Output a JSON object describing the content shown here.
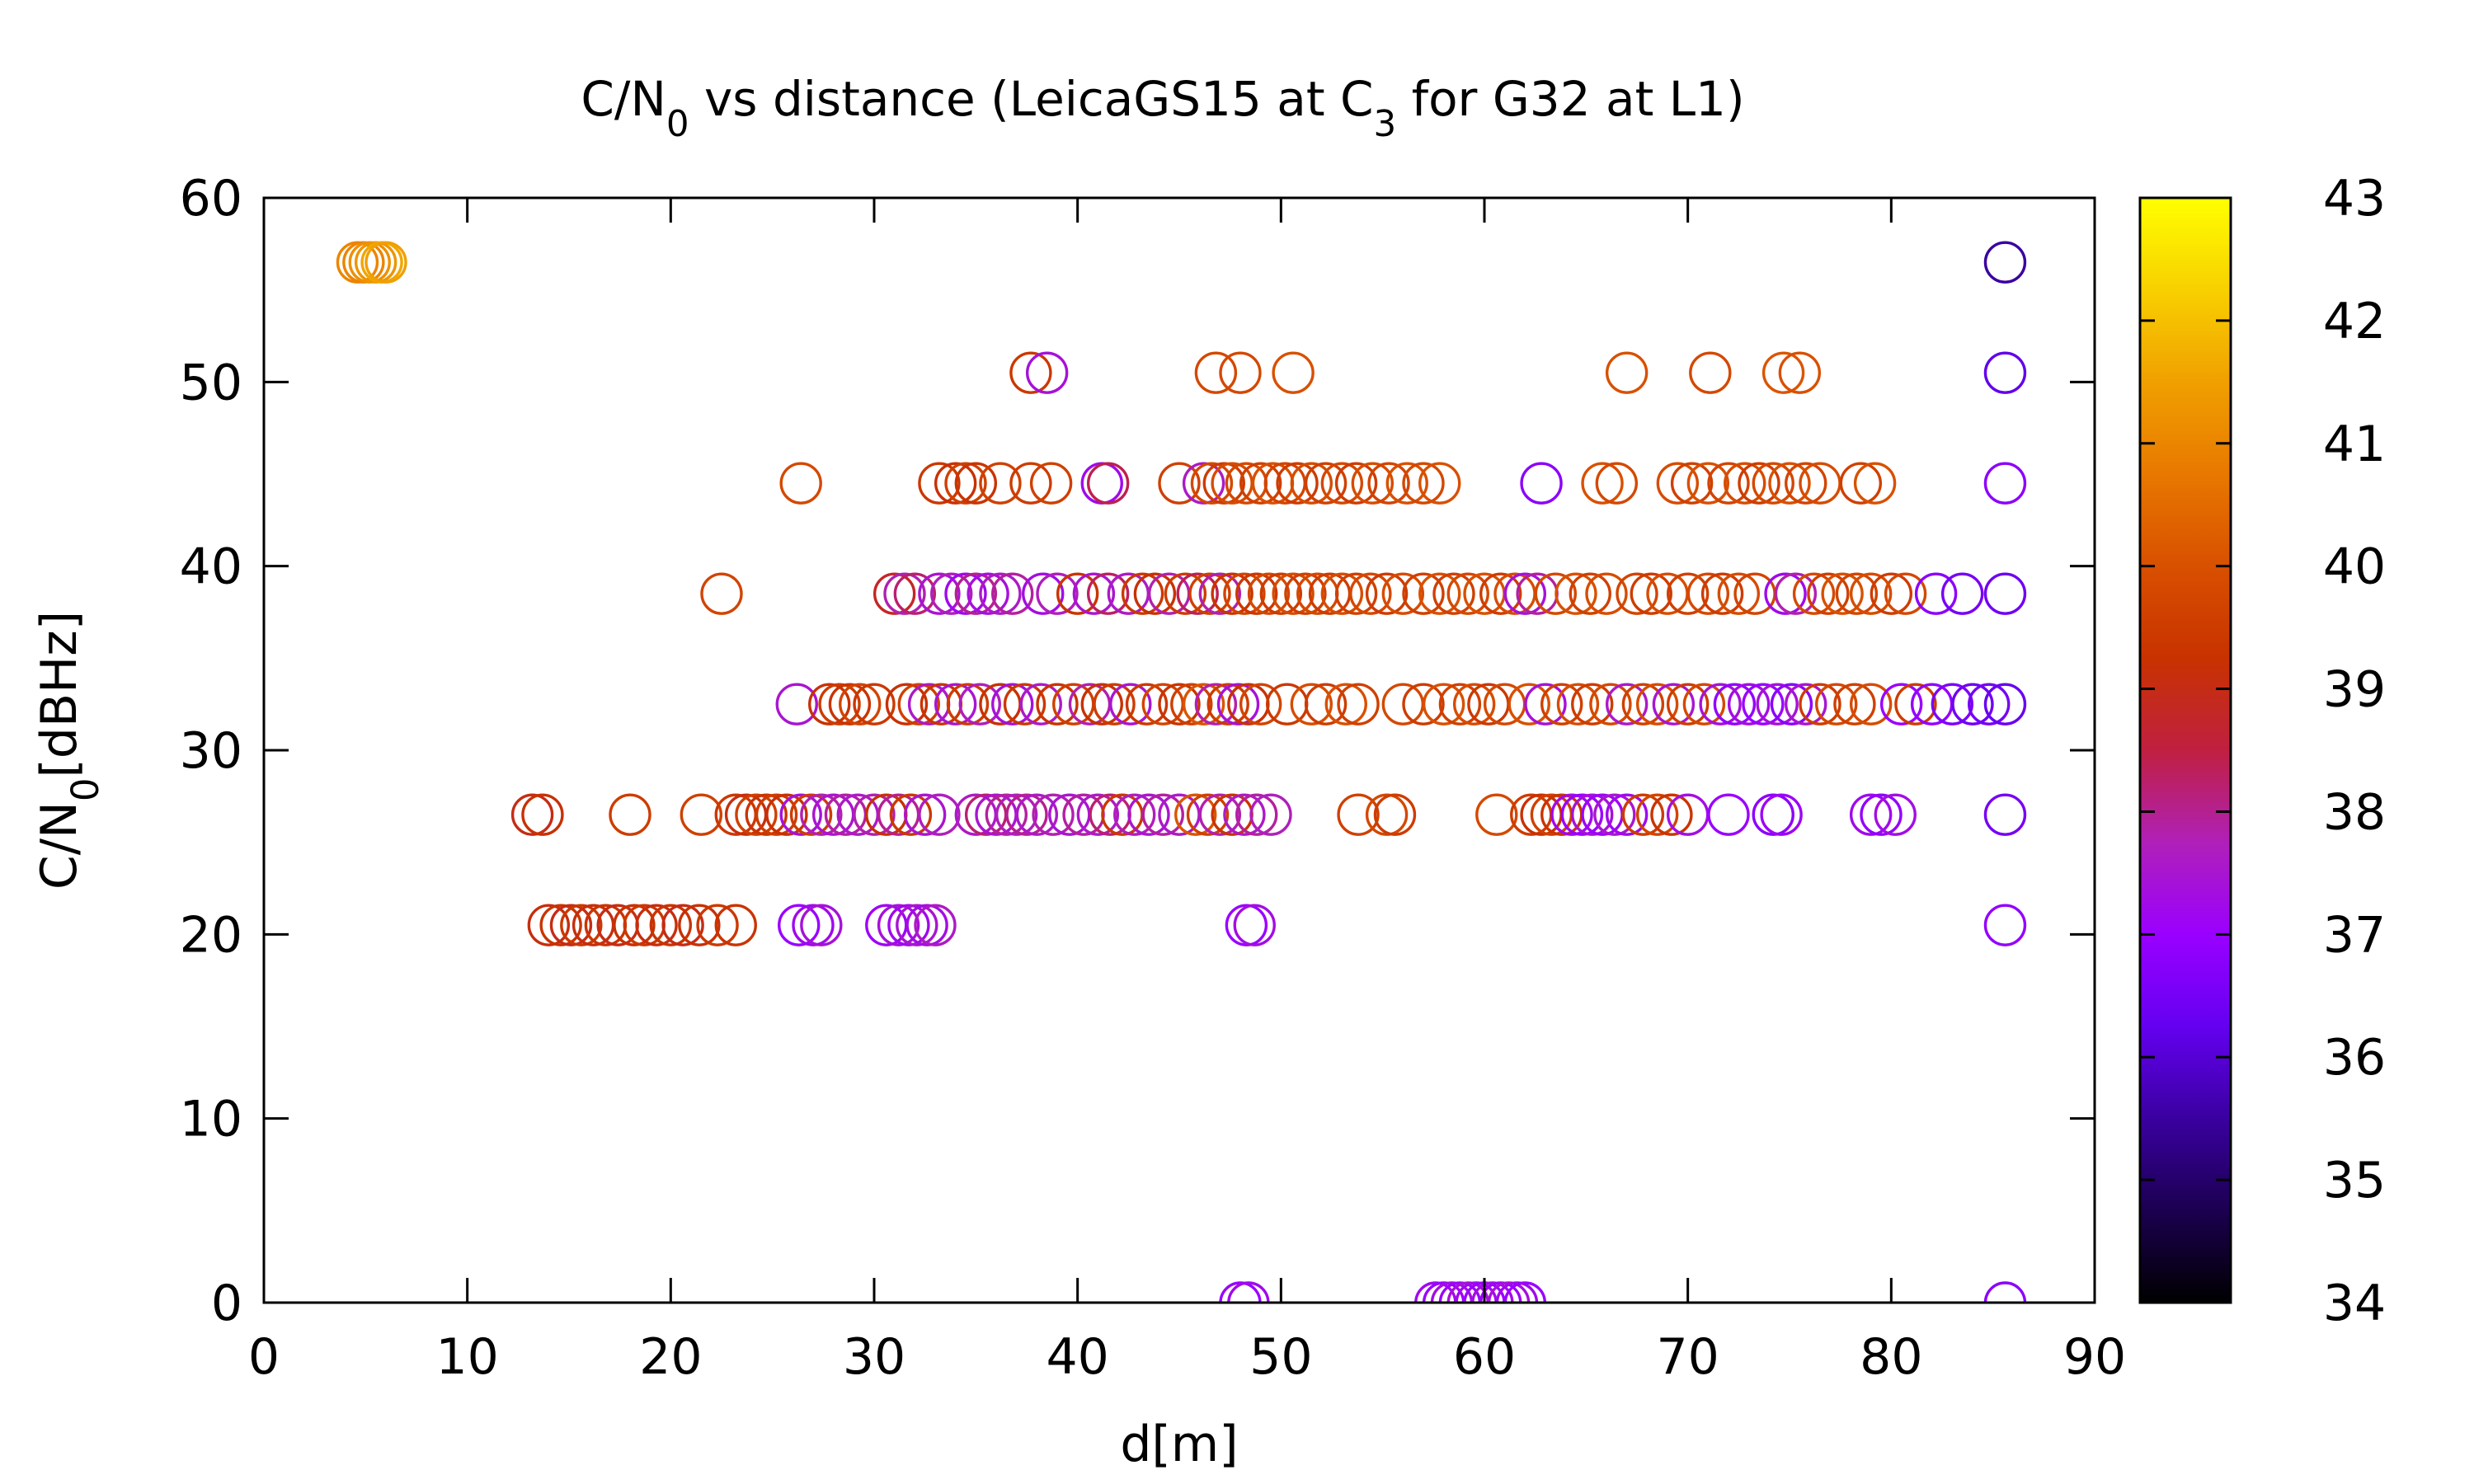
{
  "chart_data": {
    "type": "scatter",
    "marker": "open-circle",
    "title": "C/N0 vs distance (LeicaGS15 at C3 for G32 at L1)",
    "xlabel": "d[m]",
    "ylabel": "C/N0[dBHz]",
    "xlim": [
      0,
      90
    ],
    "ylim": [
      0,
      60
    ],
    "xticks": [
      0,
      10,
      20,
      30,
      40,
      50,
      60,
      70,
      80,
      90
    ],
    "yticks": [
      0,
      10,
      20,
      30,
      40,
      50,
      60
    ],
    "grid": false,
    "legend": "none",
    "colorbar": {
      "range": [
        34,
        43
      ],
      "ticks": [
        34,
        35,
        36,
        37,
        38,
        39,
        40,
        41,
        42,
        43
      ],
      "colormap": "black-purple-red-orange-yellow"
    },
    "colormap_stops": [
      "#000000",
      "#1b0050",
      "#3a00a0",
      "#6400f0",
      "#9a00ff",
      "#b020b8",
      "#c02040",
      "#c83200",
      "#d85000",
      "#e87800",
      "#f0a000",
      "#f8d000",
      "#ffff00"
    ],
    "points": [
      [
        4.6,
        56.5,
        41.0
      ],
      [
        4.9,
        56.5,
        41.0
      ],
      [
        5.2,
        56.5,
        41.2
      ],
      [
        5.5,
        56.5,
        41.3
      ],
      [
        5.8,
        56.5,
        41.6
      ],
      [
        6.0,
        56.5,
        41.5
      ],
      [
        85.6,
        56.5,
        35.5
      ],
      [
        37.7,
        50.5,
        39.4
      ],
      [
        38.5,
        50.5,
        37.4
      ],
      [
        46.8,
        50.5,
        39.8
      ],
      [
        48.0,
        50.5,
        39.8
      ],
      [
        50.6,
        50.5,
        40.0
      ],
      [
        67.0,
        50.5,
        40.0
      ],
      [
        71.1,
        50.5,
        39.8
      ],
      [
        74.7,
        50.5,
        40.1
      ],
      [
        75.5,
        50.5,
        40.0
      ],
      [
        85.6,
        50.5,
        36.2
      ],
      [
        26.4,
        44.5,
        39.8
      ],
      [
        33.2,
        44.5,
        39.4
      ],
      [
        34.0,
        44.5,
        39.2
      ],
      [
        34.5,
        44.5,
        39.6
      ],
      [
        35.0,
        44.5,
        39.3
      ],
      [
        36.2,
        44.5,
        39.6
      ],
      [
        37.7,
        44.5,
        39.5
      ],
      [
        38.7,
        44.5,
        39.6
      ],
      [
        41.2,
        44.5,
        37.2
      ],
      [
        41.5,
        44.5,
        38.4
      ],
      [
        45.0,
        44.5,
        39.6
      ],
      [
        46.2,
        44.5,
        37.6
      ],
      [
        46.6,
        44.5,
        39.8
      ],
      [
        47.2,
        44.5,
        39.5
      ],
      [
        47.6,
        44.5,
        39.9
      ],
      [
        48.3,
        44.5,
        39.8
      ],
      [
        49.0,
        44.5,
        39.6
      ],
      [
        49.6,
        44.5,
        40.0
      ],
      [
        50.2,
        44.5,
        39.7
      ],
      [
        50.8,
        44.5,
        39.5
      ],
      [
        51.5,
        44.5,
        39.9
      ],
      [
        52.2,
        44.5,
        39.6
      ],
      [
        53.0,
        44.5,
        39.8
      ],
      [
        53.7,
        44.5,
        39.5
      ],
      [
        54.5,
        44.5,
        39.9
      ],
      [
        55.3,
        44.5,
        39.7
      ],
      [
        56.2,
        44.5,
        40.0
      ],
      [
        57.0,
        44.5,
        39.8
      ],
      [
        57.8,
        44.5,
        40.0
      ],
      [
        62.8,
        44.5,
        36.8
      ],
      [
        65.8,
        44.5,
        40.0
      ],
      [
        66.5,
        44.5,
        39.8
      ],
      [
        69.5,
        44.5,
        39.9
      ],
      [
        70.2,
        44.5,
        39.6
      ],
      [
        71.0,
        44.5,
        40.0
      ],
      [
        72.0,
        44.5,
        39.7
      ],
      [
        72.8,
        44.5,
        39.9
      ],
      [
        73.5,
        44.5,
        39.5
      ],
      [
        74.2,
        44.5,
        39.8
      ],
      [
        75.0,
        44.5,
        40.0
      ],
      [
        75.8,
        44.5,
        39.7
      ],
      [
        76.5,
        44.5,
        39.9
      ],
      [
        78.5,
        44.5,
        39.6
      ],
      [
        79.2,
        44.5,
        40.0
      ],
      [
        85.6,
        44.5,
        36.8
      ],
      [
        22.5,
        38.5,
        39.7
      ],
      [
        31.0,
        38.5,
        38.8
      ],
      [
        31.5,
        38.5,
        37.8
      ],
      [
        32.0,
        38.5,
        38.2
      ],
      [
        33.2,
        38.5,
        37.5
      ],
      [
        33.8,
        38.5,
        37.7
      ],
      [
        34.5,
        38.5,
        37.2
      ],
      [
        35.0,
        38.5,
        38.0
      ],
      [
        35.6,
        38.5,
        37.4
      ],
      [
        36.2,
        38.5,
        37.6
      ],
      [
        36.8,
        38.5,
        37.9
      ],
      [
        38.3,
        38.5,
        37.3
      ],
      [
        39.0,
        38.5,
        37.7
      ],
      [
        40.0,
        38.5,
        39.3
      ],
      [
        40.8,
        38.5,
        37.5
      ],
      [
        41.5,
        38.5,
        38.3
      ],
      [
        42.5,
        38.5,
        37.6
      ],
      [
        43.2,
        38.5,
        39.4
      ],
      [
        43.8,
        38.5,
        39.2
      ],
      [
        44.5,
        38.5,
        37.8
      ],
      [
        45.3,
        38.5,
        39.5
      ],
      [
        45.9,
        38.5,
        38.4
      ],
      [
        46.5,
        38.5,
        39.6
      ],
      [
        47.0,
        38.5,
        37.8
      ],
      [
        47.6,
        38.5,
        39.3
      ],
      [
        48.2,
        38.5,
        39.7
      ],
      [
        48.8,
        38.5,
        39.4
      ],
      [
        49.4,
        38.5,
        39.8
      ],
      [
        50.0,
        38.5,
        39.5
      ],
      [
        50.6,
        38.5,
        39.9
      ],
      [
        51.2,
        38.5,
        39.6
      ],
      [
        51.8,
        38.5,
        39.8
      ],
      [
        52.4,
        38.5,
        39.5
      ],
      [
        53.0,
        38.5,
        39.9
      ],
      [
        53.7,
        38.5,
        39.6
      ],
      [
        54.4,
        38.5,
        39.8
      ],
      [
        55.2,
        38.5,
        39.5
      ],
      [
        56.0,
        38.5,
        39.9
      ],
      [
        57.0,
        38.5,
        39.6
      ],
      [
        57.8,
        38.5,
        40.0
      ],
      [
        58.5,
        38.5,
        39.6
      ],
      [
        59.2,
        38.5,
        39.8
      ],
      [
        60.0,
        38.5,
        40.0
      ],
      [
        60.8,
        38.5,
        39.5
      ],
      [
        61.5,
        38.5,
        39.9
      ],
      [
        62.0,
        38.5,
        37.4
      ],
      [
        62.6,
        38.5,
        37.9
      ],
      [
        63.5,
        38.5,
        39.8
      ],
      [
        64.5,
        38.5,
        40.0
      ],
      [
        65.2,
        38.5,
        39.6
      ],
      [
        66.0,
        38.5,
        39.9
      ],
      [
        67.5,
        38.5,
        39.7
      ],
      [
        68.2,
        38.5,
        39.5
      ],
      [
        69.0,
        38.5,
        39.9
      ],
      [
        70.0,
        38.5,
        39.6
      ],
      [
        71.0,
        38.5,
        39.8
      ],
      [
        71.7,
        38.5,
        39.5
      ],
      [
        72.5,
        38.5,
        39.9
      ],
      [
        73.3,
        38.5,
        39.7
      ],
      [
        74.8,
        38.5,
        37.2
      ],
      [
        75.3,
        38.5,
        37.8
      ],
      [
        76.2,
        38.5,
        39.8
      ],
      [
        76.9,
        38.5,
        39.6
      ],
      [
        77.6,
        38.5,
        40.0
      ],
      [
        78.3,
        38.5,
        39.7
      ],
      [
        79.0,
        38.5,
        39.9
      ],
      [
        80.0,
        38.5,
        39.5
      ],
      [
        80.7,
        38.5,
        39.8
      ],
      [
        82.2,
        38.5,
        36.8
      ],
      [
        83.5,
        38.5,
        36.5
      ],
      [
        85.6,
        38.5,
        36.4
      ],
      [
        26.2,
        32.5,
        37.5
      ],
      [
        27.8,
        32.5,
        39.2
      ],
      [
        28.3,
        32.5,
        39.5
      ],
      [
        28.8,
        32.5,
        39.3
      ],
      [
        29.3,
        32.5,
        39.7
      ],
      [
        30.0,
        32.5,
        39.4
      ],
      [
        31.6,
        32.5,
        39.2
      ],
      [
        32.2,
        32.5,
        39.6
      ],
      [
        32.7,
        32.5,
        37.6
      ],
      [
        33.3,
        32.5,
        39.3
      ],
      [
        34.0,
        32.5,
        37.5
      ],
      [
        34.6,
        32.5,
        39.5
      ],
      [
        35.2,
        32.5,
        37.7
      ],
      [
        36.2,
        32.5,
        39.2
      ],
      [
        36.8,
        32.5,
        37.4
      ],
      [
        37.4,
        32.5,
        39.4
      ],
      [
        38.2,
        32.5,
        37.6
      ],
      [
        39.0,
        32.5,
        39.3
      ],
      [
        39.8,
        32.5,
        39.6
      ],
      [
        40.6,
        32.5,
        37.8
      ],
      [
        41.2,
        32.5,
        39.2
      ],
      [
        41.8,
        32.5,
        39.5
      ],
      [
        42.6,
        32.5,
        37.5
      ],
      [
        43.4,
        32.5,
        39.4
      ],
      [
        44.2,
        32.5,
        39.7
      ],
      [
        45.0,
        32.5,
        39.3
      ],
      [
        45.6,
        32.5,
        39.6
      ],
      [
        46.2,
        32.5,
        40.1
      ],
      [
        46.8,
        32.5,
        37.8
      ],
      [
        47.4,
        32.5,
        39.5
      ],
      [
        47.9,
        32.5,
        37.4
      ],
      [
        48.4,
        32.5,
        39.2
      ],
      [
        49.0,
        32.5,
        39.7
      ],
      [
        50.3,
        32.5,
        39.4
      ],
      [
        51.5,
        32.5,
        39.9
      ],
      [
        52.2,
        32.5,
        39.5
      ],
      [
        53.2,
        32.5,
        40.0
      ],
      [
        53.8,
        32.5,
        39.6
      ],
      [
        56.0,
        32.5,
        39.8
      ],
      [
        57.0,
        32.5,
        39.5
      ],
      [
        58.0,
        32.5,
        40.0
      ],
      [
        58.8,
        32.5,
        39.6
      ],
      [
        59.5,
        32.5,
        39.9
      ],
      [
        60.2,
        32.5,
        39.4
      ],
      [
        61.0,
        32.5,
        39.8
      ],
      [
        62.2,
        32.5,
        40.0
      ],
      [
        63.0,
        32.5,
        37.4
      ],
      [
        63.8,
        32.5,
        39.6
      ],
      [
        64.6,
        32.5,
        39.9
      ],
      [
        65.3,
        32.5,
        39.5
      ],
      [
        66.2,
        32.5,
        39.8
      ],
      [
        67.0,
        32.5,
        37.6
      ],
      [
        67.8,
        32.5,
        39.6
      ],
      [
        68.5,
        32.5,
        39.9
      ],
      [
        69.3,
        32.5,
        37.5
      ],
      [
        70.0,
        32.5,
        39.5
      ],
      [
        70.8,
        32.5,
        39.8
      ],
      [
        71.6,
        32.5,
        37.4
      ],
      [
        72.3,
        32.5,
        36.9
      ],
      [
        73.0,
        32.5,
        37.3
      ],
      [
        73.7,
        32.5,
        37.0
      ],
      [
        74.4,
        32.5,
        37.4
      ],
      [
        75.1,
        32.5,
        36.8
      ],
      [
        75.8,
        32.5,
        37.5
      ],
      [
        76.5,
        32.5,
        39.5
      ],
      [
        77.3,
        32.5,
        39.8
      ],
      [
        78.2,
        32.5,
        39.6
      ],
      [
        79.0,
        32.5,
        39.9
      ],
      [
        80.5,
        32.5,
        37.0
      ],
      [
        81.2,
        32.5,
        39.5
      ],
      [
        82.0,
        32.5,
        36.9
      ],
      [
        83.0,
        32.5,
        36.6
      ],
      [
        84.0,
        32.5,
        36.4
      ],
      [
        84.8,
        32.5,
        36.5
      ],
      [
        85.6,
        32.5,
        36.3
      ],
      [
        13.2,
        26.5,
        39.0
      ],
      [
        13.7,
        26.5,
        39.2
      ],
      [
        18.0,
        26.5,
        39.5
      ],
      [
        21.5,
        26.5,
        39.6
      ],
      [
        23.2,
        26.5,
        39.4
      ],
      [
        23.7,
        26.5,
        39.1
      ],
      [
        24.2,
        26.5,
        39.6
      ],
      [
        24.7,
        26.5,
        39.3
      ],
      [
        25.2,
        26.5,
        39.5
      ],
      [
        25.7,
        26.5,
        39.2
      ],
      [
        26.4,
        26.5,
        37.4
      ],
      [
        26.9,
        26.5,
        39.5
      ],
      [
        27.4,
        26.5,
        37.8
      ],
      [
        28.0,
        26.5,
        37.5
      ],
      [
        28.6,
        26.5,
        37.9
      ],
      [
        29.2,
        26.5,
        37.6
      ],
      [
        30.0,
        26.5,
        37.8
      ],
      [
        30.6,
        26.5,
        39.2
      ],
      [
        31.2,
        26.5,
        38.0
      ],
      [
        31.8,
        26.5,
        39.4
      ],
      [
        32.5,
        26.5,
        37.5
      ],
      [
        33.2,
        26.5,
        37.7
      ],
      [
        35.0,
        26.5,
        37.6
      ],
      [
        35.5,
        26.5,
        38.2
      ],
      [
        36.0,
        26.5,
        37.5
      ],
      [
        36.5,
        26.5,
        37.9
      ],
      [
        37.0,
        26.5,
        37.7
      ],
      [
        37.5,
        26.5,
        38.0
      ],
      [
        38.0,
        26.5,
        37.6
      ],
      [
        38.8,
        26.5,
        37.8
      ],
      [
        39.6,
        26.5,
        37.5
      ],
      [
        40.3,
        26.5,
        37.9
      ],
      [
        41.0,
        26.5,
        37.6
      ],
      [
        41.6,
        26.5,
        38.2
      ],
      [
        42.2,
        26.5,
        39.4
      ],
      [
        42.8,
        26.5,
        37.7
      ],
      [
        43.5,
        26.5,
        37.5
      ],
      [
        44.2,
        26.5,
        37.9
      ],
      [
        45.0,
        26.5,
        37.6
      ],
      [
        45.8,
        26.5,
        40.1
      ],
      [
        46.4,
        26.5,
        39.6
      ],
      [
        47.0,
        26.5,
        37.8
      ],
      [
        47.6,
        26.5,
        39.3
      ],
      [
        48.2,
        26.5,
        37.6
      ],
      [
        48.8,
        26.5,
        37.9
      ],
      [
        49.5,
        26.5,
        37.7
      ],
      [
        53.8,
        26.5,
        39.6
      ],
      [
        55.2,
        26.5,
        39.8
      ],
      [
        55.6,
        26.5,
        39.5
      ],
      [
        60.6,
        26.5,
        39.8
      ],
      [
        62.3,
        26.5,
        39.5
      ],
      [
        62.8,
        26.5,
        39.2
      ],
      [
        63.3,
        26.5,
        39.6
      ],
      [
        63.8,
        26.5,
        39.3
      ],
      [
        64.3,
        26.5,
        37.2
      ],
      [
        64.8,
        26.5,
        37.0
      ],
      [
        65.3,
        26.5,
        37.4
      ],
      [
        65.8,
        26.5,
        37.1
      ],
      [
        66.4,
        26.5,
        37.5
      ],
      [
        67.0,
        26.5,
        37.2
      ],
      [
        67.8,
        26.5,
        39.5
      ],
      [
        68.5,
        26.5,
        39.7
      ],
      [
        69.2,
        26.5,
        39.3
      ],
      [
        70.0,
        26.5,
        37.3
      ],
      [
        72.0,
        26.5,
        37.0
      ],
      [
        74.2,
        26.5,
        36.8
      ],
      [
        74.6,
        26.5,
        37.1
      ],
      [
        79.0,
        26.5,
        37.2
      ],
      [
        79.5,
        26.5,
        36.9
      ],
      [
        80.2,
        26.5,
        37.3
      ],
      [
        85.6,
        26.5,
        36.5
      ],
      [
        14.0,
        20.5,
        39.1
      ],
      [
        14.6,
        20.5,
        39.3
      ],
      [
        15.1,
        20.5,
        39.0
      ],
      [
        15.6,
        20.5,
        39.4
      ],
      [
        16.2,
        20.5,
        39.1
      ],
      [
        16.8,
        20.5,
        39.3
      ],
      [
        17.4,
        20.5,
        39.0
      ],
      [
        18.2,
        20.5,
        39.2
      ],
      [
        18.7,
        20.5,
        39.4
      ],
      [
        19.3,
        20.5,
        39.1
      ],
      [
        20.0,
        20.5,
        39.3
      ],
      [
        20.6,
        20.5,
        39.0
      ],
      [
        21.4,
        20.5,
        39.2
      ],
      [
        22.3,
        20.5,
        39.4
      ],
      [
        23.2,
        20.5,
        39.3
      ],
      [
        26.3,
        20.5,
        37.0
      ],
      [
        27.0,
        20.5,
        37.2
      ],
      [
        27.4,
        20.5,
        37.4
      ],
      [
        30.6,
        20.5,
        37.1
      ],
      [
        31.2,
        20.5,
        37.4
      ],
      [
        31.7,
        20.5,
        37.2
      ],
      [
        32.1,
        20.5,
        37.5
      ],
      [
        32.6,
        20.5,
        37.3
      ],
      [
        33.0,
        20.5,
        37.6
      ],
      [
        48.3,
        20.5,
        37.0
      ],
      [
        48.7,
        20.5,
        37.3
      ],
      [
        85.6,
        20.5,
        36.9
      ],
      [
        48.0,
        0,
        37.0
      ],
      [
        48.4,
        0,
        37.2
      ],
      [
        57.6,
        0,
        37.2
      ],
      [
        58.0,
        0,
        37.0
      ],
      [
        58.4,
        0,
        37.3
      ],
      [
        58.8,
        0,
        37.1
      ],
      [
        59.2,
        0,
        37.4
      ],
      [
        59.6,
        0,
        37.2
      ],
      [
        60.0,
        0,
        37.0
      ],
      [
        60.4,
        0,
        37.3
      ],
      [
        60.8,
        0,
        37.1
      ],
      [
        61.2,
        0,
        37.4
      ],
      [
        61.6,
        0,
        37.2
      ],
      [
        62.0,
        0,
        37.0
      ],
      [
        85.6,
        0,
        36.8
      ]
    ]
  }
}
